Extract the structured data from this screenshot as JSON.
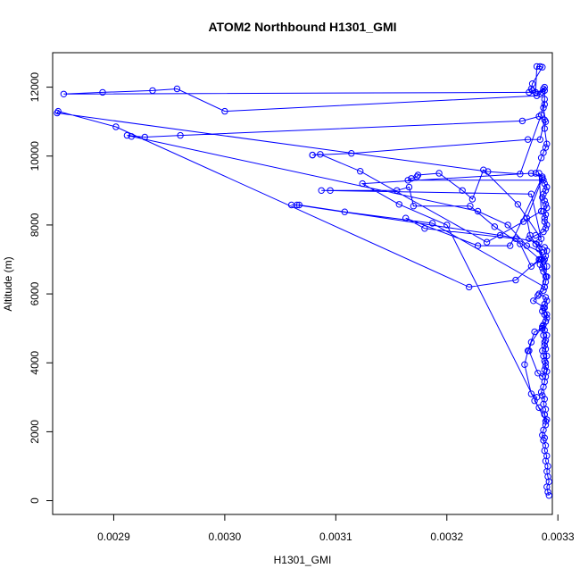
{
  "chart_data": {
    "type": "line",
    "title": "ATOM2 Northbound H1301_GMI",
    "xlabel": "H1301_GMI",
    "ylabel": "Altitude (m)",
    "xlim": [
      0.002845,
      0.003295
    ],
    "ylim": [
      -400,
      13000
    ],
    "xticks": [
      0.0029,
      0.003,
      0.0031,
      0.0032,
      0.0033
    ],
    "xtick_labels": [
      "0.0029",
      "0.0030",
      "0.0031",
      "0.0032",
      "0.0033"
    ],
    "yticks": [
      0,
      2000,
      4000,
      6000,
      8000,
      10000,
      12000
    ],
    "ytick_labels": [
      "0",
      "2000",
      "4000",
      "6000",
      "8000",
      "10000",
      "12000"
    ],
    "grid": false,
    "markers": "open-circle",
    "series": [
      {
        "color": "#0000ff",
        "x": [
          0.003292,
          0.003291,
          0.00329,
          0.003292,
          0.003291,
          0.00329,
          0.003291,
          0.003289,
          0.00329,
          0.003288,
          0.003289,
          0.003287,
          0.003288,
          0.003286,
          0.003287,
          0.003289,
          0.00329,
          0.003288,
          0.003289,
          0.003287,
          0.003288,
          0.003286,
          0.003285,
          0.003287,
          0.003288,
          0.003289,
          0.00329,
          0.003289,
          0.003288,
          0.003287,
          0.003286,
          0.003288,
          0.003289,
          0.00329,
          0.003288,
          0.003286,
          0.003276,
          0.003274,
          0.003282,
          0.003286,
          0.003288,
          0.003289,
          0.00329,
          0.003289,
          0.003288,
          0.003287,
          0.003286,
          0.003289,
          0.00329,
          0.003288,
          0.003278,
          0.003282,
          0.003287,
          0.003288,
          0.003289,
          0.00329,
          0.003287,
          0.003286,
          0.003284,
          0.003287,
          0.003289,
          0.00329,
          0.003288,
          0.00328,
          0.003274,
          0.00328,
          0.003287,
          0.003289,
          0.00329,
          0.003288,
          0.003288,
          0.003289,
          0.003287,
          0.00329,
          0.003289,
          0.003288,
          0.003286,
          0.003287,
          0.003289,
          0.00329,
          0.003288,
          0.003286,
          0.003272,
          0.003275,
          0.003283,
          0.003288,
          0.00329,
          0.003289,
          0.003283,
          0.003289,
          0.00329,
          0.003288,
          0.003287,
          0.003286,
          0.003288,
          0.00329,
          0.003289,
          0.003287,
          0.003286,
          0.003279,
          0.003273,
          0.00327,
          0.003276,
          0.003281,
          0.003279,
          0.003283,
          0.003288,
          0.003289,
          0.0032,
          0.003157,
          0.003124,
          0.003276,
          0.003286,
          0.003257,
          0.003228,
          0.003163,
          0.00318,
          0.003262,
          0.003284,
          0.00329,
          0.003288,
          0.003187,
          0.003108,
          0.003067,
          0.00306,
          0.003065,
          0.003248,
          0.003283,
          0.003285,
          0.003276,
          0.003266,
          0.003243,
          0.003221,
          0.00317,
          0.003166,
          0.003155,
          0.003095,
          0.003087,
          0.003276,
          0.003285,
          0.003264,
          0.003233,
          0.003223,
          0.003214,
          0.003193,
          0.003174,
          0.003173,
          0.003168,
          0.003165,
          0.003287,
          0.003283,
          0.003285,
          0.003269,
          0.003236,
          0.003122,
          0.003086,
          0.003079,
          0.003079,
          0.003114,
          0.003273,
          0.003284,
          0.003288,
          0.003283,
          0.003268,
          0.00296,
          0.002928,
          0.002912,
          0.002916,
          0.003228,
          0.003255,
          0.003272,
          0.003286,
          0.003283,
          0.003262,
          0.00322,
          0.002902,
          0.00285,
          0.002849,
          0.003237,
          0.003266,
          0.003285,
          0.003288,
          0.003288,
          0.003287,
          0.003284,
          0.003281,
          0.003,
          0.002957,
          0.002935,
          0.00289,
          0.002855,
          0.003274,
          0.00328,
          0.003281,
          0.003284,
          0.003286,
          0.003277,
          0.003276,
          0.003277,
          0.003286,
          0.003288,
          0.003288,
          0.003287,
          0.003289,
          0.003288,
          0.00329,
          0.003289,
          0.003287,
          0.003285,
          0.00328
        ],
        "y": [
          150,
          250,
          400,
          550,
          700,
          850,
          1000,
          1150,
          1300,
          1450,
          1600,
          1750,
          1820,
          1900,
          2050,
          2200,
          2350,
          2500,
          2650,
          2800,
          2950,
          3050,
          3150,
          3300,
          3450,
          3600,
          3750,
          3900,
          4050,
          4200,
          4350,
          4500,
          4650,
          4800,
          4950,
          5050,
          4600,
          4350,
          3700,
          3600,
          3800,
          4000,
          4200,
          4400,
          4600,
          4800,
          5000,
          5200,
          5400,
          5600,
          5800,
          5950,
          6100,
          6200,
          6350,
          6500,
          6650,
          6750,
          6850,
          6950,
          7100,
          7250,
          7350,
          7450,
          7600,
          7700,
          7800,
          7900,
          8000,
          8100,
          8200,
          8300,
          8400,
          8500,
          8600,
          8700,
          8800,
          8900,
          9000,
          9100,
          9200,
          9350,
          8200,
          7700,
          7300,
          7000,
          6800,
          6500,
          6000,
          5900,
          5800,
          5700,
          5600,
          5500,
          5400,
          5300,
          5200,
          5100,
          5000,
          4900,
          4350,
          3950,
          3100,
          3000,
          2900,
          2700,
          2500,
          2300,
          8000,
          8600,
          9200,
          9500,
          9400,
          7400,
          7400,
          8200,
          7900,
          7600,
          7000,
          6500,
          6200,
          8050,
          8380,
          8580,
          8580,
          8580,
          7700,
          7500,
          7000,
          6800,
          7450,
          7950,
          8550,
          8550,
          9100,
          9000,
          9000,
          9000,
          8900,
          7600,
          8600,
          9600,
          8750,
          9000,
          9500,
          9450,
          9400,
          9350,
          9300,
          9300,
          9500,
          8400,
          8100,
          7500,
          9560,
          10050,
          10030,
          10030,
          10080,
          10480,
          10480,
          11050,
          11150,
          11020,
          10600,
          10550,
          10600,
          10570,
          8400,
          8000,
          7400,
          7200,
          7000,
          6400,
          6200,
          10850,
          11300,
          11250,
          9550,
          9480,
          11200,
          11650,
          11900,
          11950,
          11800,
          11750,
          11300,
          11950,
          11900,
          11850,
          11800,
          11850,
          11850,
          12600,
          12600,
          12580,
          12100,
          11950,
          11900,
          11850,
          12000,
          11500,
          11400,
          11000,
          10800,
          10350,
          10250,
          10100,
          9950,
          9500
        ]
      }
    ]
  }
}
